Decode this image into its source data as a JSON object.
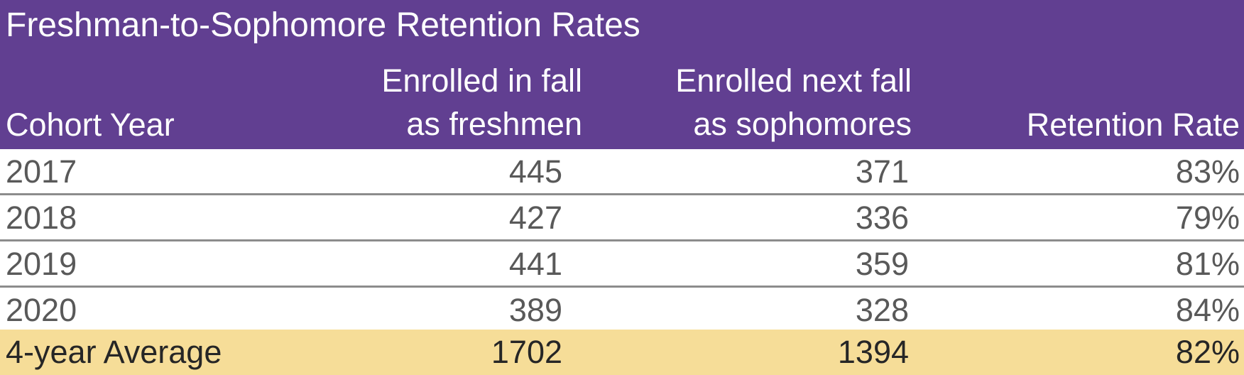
{
  "title": "Freshman-to-Sophomore Retention Rates",
  "columns": {
    "cohort": "Cohort Year",
    "enrolled_line1": "Enrolled in fall",
    "enrolled_line2": "as freshmen",
    "next_line1": "Enrolled next fall",
    "next_line2": "as sophomores",
    "rate": "Retention Rate"
  },
  "rows": [
    {
      "year": "2017",
      "freshmen": "445",
      "sophomores": "371",
      "rate": "83%"
    },
    {
      "year": "2018",
      "freshmen": "427",
      "sophomores": "336",
      "rate": "79%"
    },
    {
      "year": "2019",
      "freshmen": "441",
      "sophomores": "359",
      "rate": "81%"
    },
    {
      "year": "2020",
      "freshmen": "389",
      "sophomores": "328",
      "rate": "84%"
    }
  ],
  "total": {
    "label": "4-year Average",
    "freshmen": "1702",
    "sophomores": "1394",
    "rate": "82%"
  },
  "colors": {
    "header_bg": "#613f91",
    "total_bg": "#f6dd98",
    "body_text": "#595959"
  }
}
